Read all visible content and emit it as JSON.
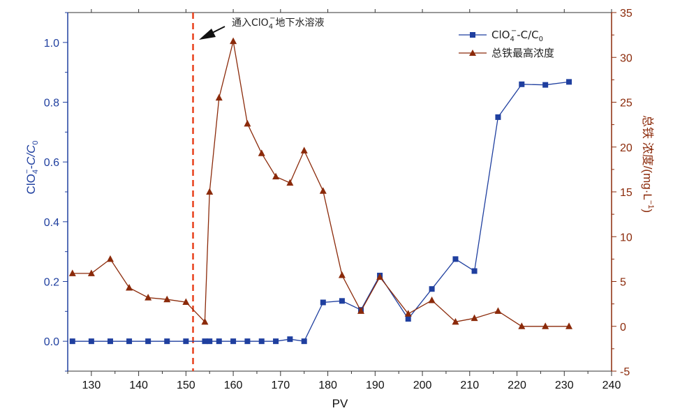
{
  "chart_data": {
    "type": "line",
    "x": {
      "label": "PV",
      "range": [
        125,
        240
      ],
      "ticks": [
        130,
        140,
        150,
        160,
        170,
        180,
        190,
        200,
        210,
        220,
        230,
        240
      ]
    },
    "y_left": {
      "label_main": "ClO",
      "label_sub": "4",
      "label_sup": "−",
      "label_rest": "-C/C",
      "label_sub2": "0",
      "range": [
        -0.1,
        1.1
      ],
      "ticks": [
        "0.0",
        "0.2",
        "0.4",
        "0.6",
        "0.8",
        "1.0"
      ],
      "tick_values": [
        0.0,
        0.2,
        0.4,
        0.6,
        0.8,
        1.0
      ],
      "color": "#1f3f9f"
    },
    "y_right": {
      "label": "总铁 浓度/(mg·L",
      "label_sup": "−1",
      "label_end": ")",
      "range": [
        -5,
        35
      ],
      "ticks": [
        "-5",
        "0",
        "5",
        "10",
        "15",
        "20",
        "25",
        "30",
        "35"
      ],
      "tick_values": [
        -5,
        0,
        5,
        10,
        15,
        20,
        25,
        30,
        35
      ],
      "color": "#8b2a0a"
    },
    "series": [
      {
        "name": "ClO4−-C/C0",
        "legend_main": "ClO",
        "legend_sub": "4",
        "legend_sup": "−",
        "legend_rest": "-C/C",
        "legend_sub2": "0",
        "axis": "left",
        "marker": "square",
        "color": "#1f3f9f",
        "x": [
          126,
          130,
          134,
          138,
          142,
          146,
          150,
          154,
          155,
          157,
          160,
          163,
          166,
          169,
          172,
          175,
          179,
          183,
          187,
          191,
          197,
          202,
          207,
          211,
          216,
          221,
          226,
          231
        ],
        "y": [
          0.0,
          0.0,
          0.0,
          0.0,
          0.0,
          0.0,
          0.0,
          0.0,
          0.0,
          0.0,
          0.0,
          0.0,
          0.0,
          0.0,
          0.007,
          0.0,
          0.13,
          0.135,
          0.105,
          0.22,
          0.075,
          0.175,
          0.275,
          0.235,
          0.75,
          0.86,
          0.858,
          0.868
        ]
      },
      {
        "name": "总铁最高浓度",
        "legend_label": "总铁最高浓度",
        "axis": "right",
        "marker": "triangle",
        "color": "#8b2a0a",
        "x": [
          126,
          130,
          134,
          138,
          142,
          146,
          150,
          154,
          155,
          157,
          160,
          163,
          166,
          169,
          172,
          175,
          179,
          183,
          187,
          191,
          197,
          202,
          207,
          211,
          216,
          221,
          226,
          231
        ],
        "y": [
          5.9,
          5.9,
          7.5,
          4.3,
          3.2,
          3.0,
          2.7,
          0.5,
          15.0,
          25.5,
          31.8,
          22.6,
          19.3,
          16.7,
          16.0,
          19.6,
          15.1,
          5.7,
          1.7,
          5.5,
          1.4,
          2.9,
          0.5,
          0.9,
          1.7,
          0.0,
          0.0,
          0.0
        ]
      }
    ],
    "vline": {
      "x": 151.5,
      "color": "#e8401c",
      "style": "dashed"
    },
    "annotation": {
      "text_pre": "通入ClO",
      "text_sub": "4",
      "text_sup": "−",
      "text_post": "地下水溶液"
    },
    "legend_position": "top-right",
    "grid": false
  }
}
